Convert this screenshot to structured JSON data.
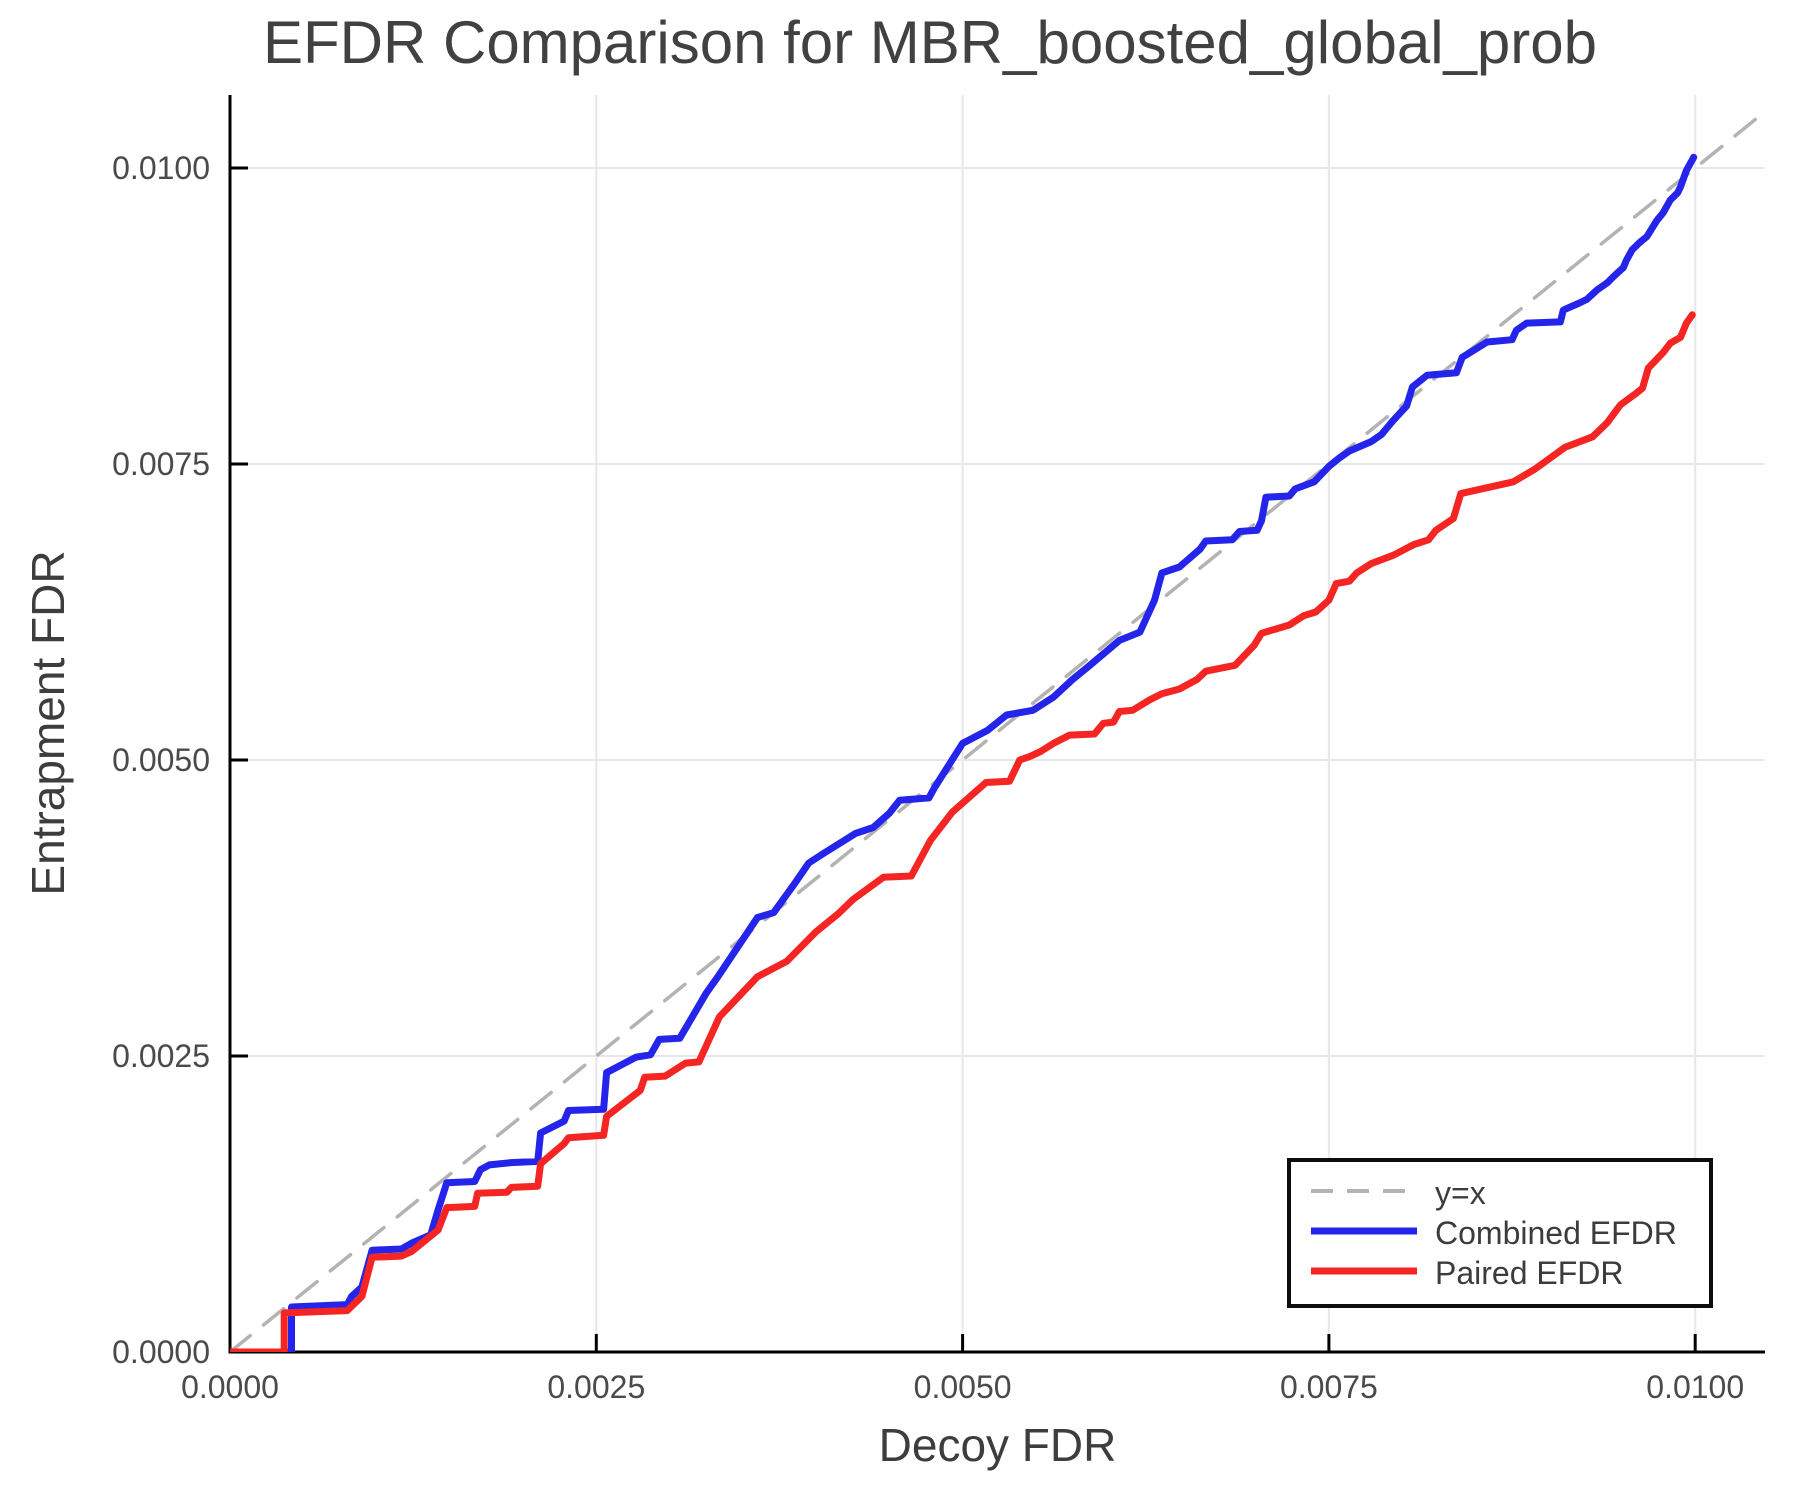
{
  "title": "EFDR Comparison for MBR_boosted_global_prob",
  "axes": {
    "x": {
      "label": "Decoy FDR",
      "tick_labels": [
        "0.0000",
        "0.0025",
        "0.0050",
        "0.0075",
        "0.0100"
      ],
      "tick_values": [
        0,
        0.0025,
        0.005,
        0.0075,
        0.01
      ]
    },
    "y": {
      "label": "Entrapment FDR",
      "tick_labels": [
        "0.0000",
        "0.0025",
        "0.0050",
        "0.0075",
        "0.0100"
      ],
      "tick_values": [
        0,
        0.0025,
        0.005,
        0.0075,
        0.01
      ]
    }
  },
  "colors": {
    "identity_line": "#B3B3B3",
    "combined": "#2424EB",
    "paired": "#F52523",
    "grid": "#E7E7E7",
    "spine": "#000000",
    "tick_label": "#4a4a4a",
    "text": "#3d3d3d"
  },
  "legend": {
    "position": "bottom-right",
    "border_color": "#0d0d0d"
  },
  "chart_data": {
    "type": "line",
    "title": "EFDR Comparison for MBR_boosted_global_prob",
    "xlabel": "Decoy FDR",
    "ylabel": "Entrapment FDR",
    "xlim": [
      0,
      0.01048
    ],
    "ylim": [
      0,
      0.01062
    ],
    "grid": true,
    "legend_position": "bottom-right",
    "series": [
      {
        "name": "y=x",
        "style": "dashed",
        "color": "#B3B3B3",
        "width": 3.5,
        "points": [
          [
            0,
            0
          ],
          [
            0.0105,
            0.0105
          ]
        ]
      },
      {
        "name": "Combined EFDR",
        "style": "solid",
        "color": "#2424EB",
        "width": 7,
        "points": [
          [
            0,
            0
          ],
          [
            0.00042,
            0
          ],
          [
            0.00042,
            0.00038
          ],
          [
            0.0008,
            0.0004
          ],
          [
            0.00083,
            0.00047
          ],
          [
            0.0009,
            0.00055
          ],
          [
            0.00097,
            0.00086
          ],
          [
            0.00117,
            0.00087
          ],
          [
            0.00124,
            0.00092
          ],
          [
            0.00137,
            0.00099
          ],
          [
            0.00142,
            0.0012
          ],
          [
            0.00148,
            0.00143
          ],
          [
            0.00167,
            0.00144
          ],
          [
            0.00171,
            0.00154
          ],
          [
            0.00177,
            0.00158
          ],
          [
            0.00192,
            0.0016
          ],
          [
            0.0021,
            0.00161
          ],
          [
            0.00212,
            0.00185
          ],
          [
            0.00228,
            0.00195
          ],
          [
            0.00231,
            0.00204
          ],
          [
            0.00255,
            0.00205
          ],
          [
            0.00257,
            0.00236
          ],
          [
            0.00277,
            0.00249
          ],
          [
            0.00287,
            0.00251
          ],
          [
            0.00293,
            0.00264
          ],
          [
            0.00307,
            0.00265
          ],
          [
            0.00325,
            0.00303
          ],
          [
            0.00333,
            0.00317
          ],
          [
            0.0036,
            0.00367
          ],
          [
            0.00371,
            0.00371
          ],
          [
            0.00385,
            0.00395
          ],
          [
            0.00395,
            0.00413
          ],
          [
            0.00405,
            0.00421
          ],
          [
            0.00427,
            0.00438
          ],
          [
            0.00439,
            0.00443
          ],
          [
            0.0045,
            0.00455
          ],
          [
            0.00457,
            0.00466
          ],
          [
            0.00477,
            0.00468
          ],
          [
            0.00481,
            0.00477
          ],
          [
            0.005,
            0.00514
          ],
          [
            0.00517,
            0.00525
          ],
          [
            0.0053,
            0.00538
          ],
          [
            0.00548,
            0.00542
          ],
          [
            0.00562,
            0.00553
          ],
          [
            0.00575,
            0.00568
          ],
          [
            0.00585,
            0.00578
          ],
          [
            0.00607,
            0.00601
          ],
          [
            0.00621,
            0.00608
          ],
          [
            0.00631,
            0.00635
          ],
          [
            0.00636,
            0.00658
          ],
          [
            0.00648,
            0.00663
          ],
          [
            0.00662,
            0.00678
          ],
          [
            0.00666,
            0.00685
          ],
          [
            0.00684,
            0.00686
          ],
          [
            0.00689,
            0.00693
          ],
          [
            0.00701,
            0.00694
          ],
          [
            0.00704,
            0.00702
          ],
          [
            0.00707,
            0.00722
          ],
          [
            0.00723,
            0.00723
          ],
          [
            0.00727,
            0.00729
          ],
          [
            0.0074,
            0.00735
          ],
          [
            0.0075,
            0.00748
          ],
          [
            0.00757,
            0.00755
          ],
          [
            0.00764,
            0.00761
          ],
          [
            0.00779,
            0.00769
          ],
          [
            0.00786,
            0.00775
          ],
          [
            0.00794,
            0.00787
          ],
          [
            0.00803,
            0.00799
          ],
          [
            0.00807,
            0.00815
          ],
          [
            0.00817,
            0.00825
          ],
          [
            0.00837,
            0.00827
          ],
          [
            0.00841,
            0.0084
          ],
          [
            0.00858,
            0.00853
          ],
          [
            0.00875,
            0.00855
          ],
          [
            0.00878,
            0.00863
          ],
          [
            0.00885,
            0.00869
          ],
          [
            0.00908,
            0.0087
          ],
          [
            0.0091,
            0.0088
          ],
          [
            0.00921,
            0.00886
          ],
          [
            0.00926,
            0.00889
          ],
          [
            0.00933,
            0.00897
          ],
          [
            0.0094,
            0.00903
          ],
          [
            0.00944,
            0.00908
          ],
          [
            0.00951,
            0.00916
          ],
          [
            0.00953,
            0.00922
          ],
          [
            0.00957,
            0.00931
          ],
          [
            0.00962,
            0.00937
          ],
          [
            0.00967,
            0.00942
          ],
          [
            0.00971,
            0.0095
          ],
          [
            0.00974,
            0.00956
          ],
          [
            0.00978,
            0.00962
          ],
          [
            0.00983,
            0.00973
          ],
          [
            0.00988,
            0.00979
          ],
          [
            0.0099,
            0.00984
          ],
          [
            0.00994,
            0.00998
          ],
          [
            0.00999,
            0.01009
          ]
        ]
      },
      {
        "name": "Paired EFDR",
        "style": "solid",
        "color": "#F52523",
        "width": 7,
        "points": [
          [
            0,
            0
          ],
          [
            0.00037,
            0
          ],
          [
            0.00037,
            0.00033
          ],
          [
            0.0008,
            0.00035
          ],
          [
            0.0009,
            0.00047
          ],
          [
            0.00097,
            0.0008
          ],
          [
            0.00117,
            0.00081
          ],
          [
            0.00124,
            0.00085
          ],
          [
            0.00142,
            0.00103
          ],
          [
            0.00148,
            0.00122
          ],
          [
            0.00167,
            0.00123
          ],
          [
            0.00169,
            0.00134
          ],
          [
            0.00189,
            0.00135
          ],
          [
            0.00192,
            0.00139
          ],
          [
            0.0021,
            0.0014
          ],
          [
            0.00212,
            0.00159
          ],
          [
            0.00228,
            0.00176
          ],
          [
            0.00231,
            0.00181
          ],
          [
            0.00255,
            0.00183
          ],
          [
            0.00257,
            0.00199
          ],
          [
            0.0028,
            0.00221
          ],
          [
            0.00283,
            0.00232
          ],
          [
            0.00297,
            0.00233
          ],
          [
            0.00311,
            0.00244
          ],
          [
            0.0032,
            0.00245
          ],
          [
            0.00334,
            0.00283
          ],
          [
            0.0036,
            0.00317
          ],
          [
            0.0038,
            0.0033
          ],
          [
            0.004,
            0.00355
          ],
          [
            0.00415,
            0.0037
          ],
          [
            0.00425,
            0.00382
          ],
          [
            0.00446,
            0.00401
          ],
          [
            0.00465,
            0.00402
          ],
          [
            0.00478,
            0.00432
          ],
          [
            0.00493,
            0.00456
          ],
          [
            0.00516,
            0.00481
          ],
          [
            0.00532,
            0.00482
          ],
          [
            0.00539,
            0.005
          ],
          [
            0.00546,
            0.00503
          ],
          [
            0.00553,
            0.00507
          ],
          [
            0.00562,
            0.00514
          ],
          [
            0.00573,
            0.00521
          ],
          [
            0.0059,
            0.00522
          ],
          [
            0.00596,
            0.00531
          ],
          [
            0.00603,
            0.00532
          ],
          [
            0.00607,
            0.00541
          ],
          [
            0.00616,
            0.00542
          ],
          [
            0.00628,
            0.00551
          ],
          [
            0.00636,
            0.00556
          ],
          [
            0.00648,
            0.0056
          ],
          [
            0.0066,
            0.00568
          ],
          [
            0.00666,
            0.00575
          ],
          [
            0.00686,
            0.0058
          ],
          [
            0.00699,
            0.00597
          ],
          [
            0.00704,
            0.00607
          ],
          [
            0.00723,
            0.00614
          ],
          [
            0.00733,
            0.00622
          ],
          [
            0.00741,
            0.00625
          ],
          [
            0.0075,
            0.00635
          ],
          [
            0.00755,
            0.00649
          ],
          [
            0.00764,
            0.00651
          ],
          [
            0.00769,
            0.00658
          ],
          [
            0.00779,
            0.00666
          ],
          [
            0.00794,
            0.00673
          ],
          [
            0.00808,
            0.00682
          ],
          [
            0.00818,
            0.00686
          ],
          [
            0.00823,
            0.00694
          ],
          [
            0.00835,
            0.00704
          ],
          [
            0.0084,
            0.00725
          ],
          [
            0.00876,
            0.00735
          ],
          [
            0.00891,
            0.00746
          ],
          [
            0.00911,
            0.00764
          ],
          [
            0.0093,
            0.00773
          ],
          [
            0.0094,
            0.00785
          ],
          [
            0.00949,
            0.008
          ],
          [
            0.00959,
            0.00809
          ],
          [
            0.00964,
            0.00814
          ],
          [
            0.00968,
            0.00831
          ],
          [
            0.00978,
            0.00844
          ],
          [
            0.00983,
            0.00852
          ],
          [
            0.0099,
            0.00857
          ],
          [
            0.00994,
            0.00869
          ],
          [
            0.00998,
            0.00876
          ]
        ]
      }
    ]
  }
}
